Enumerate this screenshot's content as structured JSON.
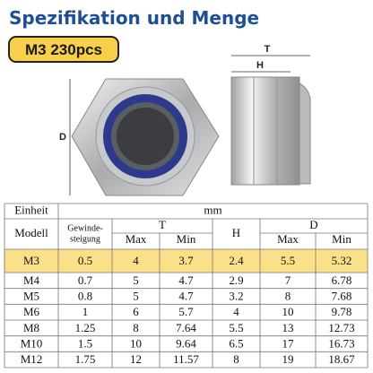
{
  "header": {
    "title": "Spezifikation und Menge",
    "badge": "M3 230pcs"
  },
  "diagram": {
    "dimension_labels": [
      "D",
      "T",
      "H"
    ]
  },
  "table": {
    "unit_header": [
      "Einheit",
      "mm"
    ],
    "columns": [
      "Modell",
      [
        "Gewinde-",
        "steigung"
      ],
      "T",
      "H",
      "D"
    ],
    "subcolumns": [
      "Max",
      "Min",
      "Max",
      "Min"
    ],
    "rows": [
      [
        "M3",
        "0.5",
        "4",
        "3.7",
        "2.4",
        "5.5",
        "5.32"
      ],
      [
        "M4",
        "0.7",
        "5",
        "4.7",
        "2.9",
        "7",
        "6.78"
      ],
      [
        "M5",
        "0.8",
        "5",
        "4.7",
        "3.2",
        "8",
        "7.68"
      ],
      [
        "M6",
        "1",
        "6",
        "5.7",
        "4",
        "10",
        "9.78"
      ],
      [
        "M8",
        "1.25",
        "8",
        "7.64",
        "5.5",
        "13",
        "12.73"
      ],
      [
        "M10",
        "1.5",
        "10",
        "9.64",
        "6.5",
        "17",
        "16.73"
      ],
      [
        "M12",
        "1.75",
        "12",
        "11.57",
        "8",
        "19",
        "18.67"
      ]
    ]
  }
}
